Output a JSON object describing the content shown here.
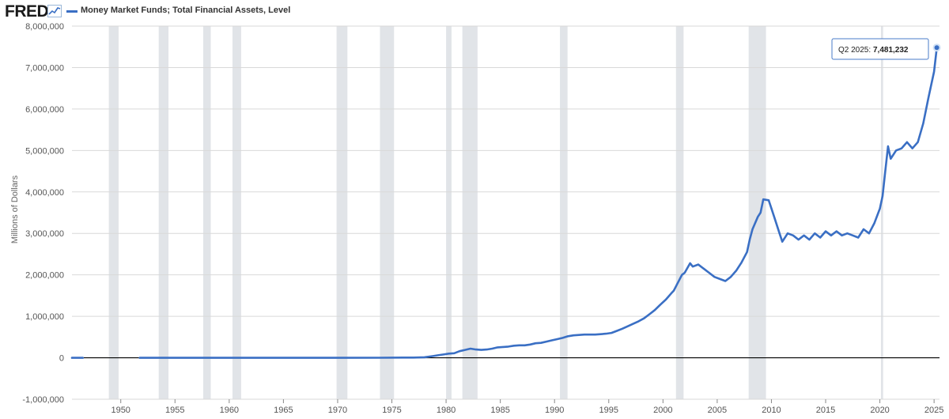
{
  "header": {
    "logo_text": "FRED",
    "series_title": "Money Market Funds; Total Financial Assets, Level"
  },
  "tooltip": {
    "period": "Q2 2025:",
    "value": "7,481,232"
  },
  "colors": {
    "line": "#3a6fc4",
    "recession": "#e1e4e8",
    "grid": "#d9d9d9",
    "zero_line": "#000000"
  },
  "chart_data": {
    "type": "line",
    "title": "Money Market Funds; Total Financial Assets, Level",
    "xlabel": "",
    "ylabel": "Millions of Dollars",
    "xlim": [
      1945.5,
      2025.5
    ],
    "ylim": [
      -1000000,
      8000000
    ],
    "x_ticks": [
      1950,
      1955,
      1960,
      1965,
      1970,
      1975,
      1980,
      1985,
      1990,
      1995,
      2000,
      2005,
      2010,
      2015,
      2020,
      2025
    ],
    "y_ticks": [
      -1000000,
      0,
      1000000,
      2000000,
      3000000,
      4000000,
      5000000,
      6000000,
      7000000,
      8000000
    ],
    "y_tick_labels": [
      "-1,000,000",
      "0",
      "1,000,000",
      "2,000,000",
      "3,000,000",
      "4,000,000",
      "5,000,000",
      "6,000,000",
      "7,000,000",
      "8,000,000"
    ],
    "grid": true,
    "recessions": [
      [
        1948.9,
        1949.8
      ],
      [
        1953.5,
        1954.4
      ],
      [
        1957.6,
        1958.3
      ],
      [
        1960.3,
        1961.1
      ],
      [
        1969.9,
        1970.9
      ],
      [
        1973.9,
        1975.2
      ],
      [
        1980.0,
        1980.5
      ],
      [
        1981.5,
        1982.9
      ],
      [
        1990.5,
        1991.2
      ],
      [
        2001.2,
        2001.9
      ],
      [
        2007.9,
        2009.5
      ],
      [
        2020.1,
        2020.3
      ]
    ],
    "series": [
      {
        "segments": [
          {
            "x": [
              1945.5,
              1946.5
            ],
            "y": [
              0,
              0
            ]
          },
          {
            "x": [
              1951.75,
              1960,
              1970,
              1974,
              1976,
              1977,
              1978,
              1978.75,
              1979.25,
              1979.75,
              1980.25,
              1980.75,
              1981.25,
              1981.75,
              1982.25,
              1982.75,
              1983.25,
              1983.75,
              1984.25,
              1984.75,
              1985.25,
              1985.75,
              1986.25,
              1986.75,
              1987.25,
              1987.75,
              1988.25,
              1988.75,
              1989.25,
              1989.75,
              1990.25,
              1990.75,
              1991.25,
              1991.75,
              1992.25,
              1992.75,
              1993.25,
              1993.75,
              1994.25,
              1994.75,
              1995.25,
              1995.75,
              1996.25,
              1996.75,
              1997.25,
              1997.75,
              1998.25,
              1998.75,
              1999.25,
              1999.75,
              2000.25,
              2000.75,
              2001.0,
              2001.25,
              2001.75,
              2002.0,
              2002.5,
              2002.75,
              2003.25,
              2003.75,
              2004.25,
              2004.75,
              2005.25,
              2005.75,
              2006.25,
              2006.75,
              2007.25,
              2007.75,
              2008.0,
              2008.25,
              2008.75,
              2009.0,
              2009.25,
              2009.75,
              2010.0,
              2010.25,
              2010.75,
              2011.0,
              2011.5,
              2012.0,
              2012.5,
              2013.0,
              2013.5,
              2014.0,
              2014.5,
              2015.0,
              2015.5,
              2016.0,
              2016.5,
              2017.0,
              2017.5,
              2018.0,
              2018.5,
              2019.0,
              2019.5,
              2020.0,
              2020.25,
              2020.5,
              2020.75,
              2021.0,
              2021.5,
              2022.0,
              2022.5,
              2023.0,
              2023.5,
              2024.0,
              2024.5,
              2025.0,
              2025.25
            ],
            "y": [
              0,
              0,
              0,
              2000,
              4000,
              5000,
              12000,
              40000,
              60000,
              80000,
              100000,
              110000,
              160000,
              190000,
              220000,
              200000,
              190000,
              200000,
              220000,
              250000,
              260000,
              270000,
              290000,
              300000,
              300000,
              320000,
              350000,
              360000,
              390000,
              420000,
              450000,
              480000,
              520000,
              540000,
              550000,
              560000,
              560000,
              560000,
              570000,
              580000,
              600000,
              650000,
              700000,
              760000,
              820000,
              880000,
              950000,
              1050000,
              1150000,
              1280000,
              1400000,
              1550000,
              1620000,
              1750000,
              2000000,
              2050000,
              2280000,
              2200000,
              2250000,
              2150000,
              2050000,
              1950000,
              1900000,
              1850000,
              1950000,
              2100000,
              2300000,
              2550000,
              2850000,
              3100000,
              3400000,
              3500000,
              3820000,
              3800000,
              3600000,
              3400000,
              3000000,
              2800000,
              3000000,
              2950000,
              2850000,
              2950000,
              2850000,
              3000000,
              2900000,
              3050000,
              2950000,
              3050000,
              2950000,
              3000000,
              2950000,
              2900000,
              3100000,
              3000000,
              3250000,
              3600000,
              3900000,
              4500000,
              5100000,
              4800000,
              5000000,
              5050000,
              5200000,
              5050000,
              5200000,
              5650000,
              6300000,
              6900000,
              7481232
            ]
          }
        ]
      }
    ]
  }
}
